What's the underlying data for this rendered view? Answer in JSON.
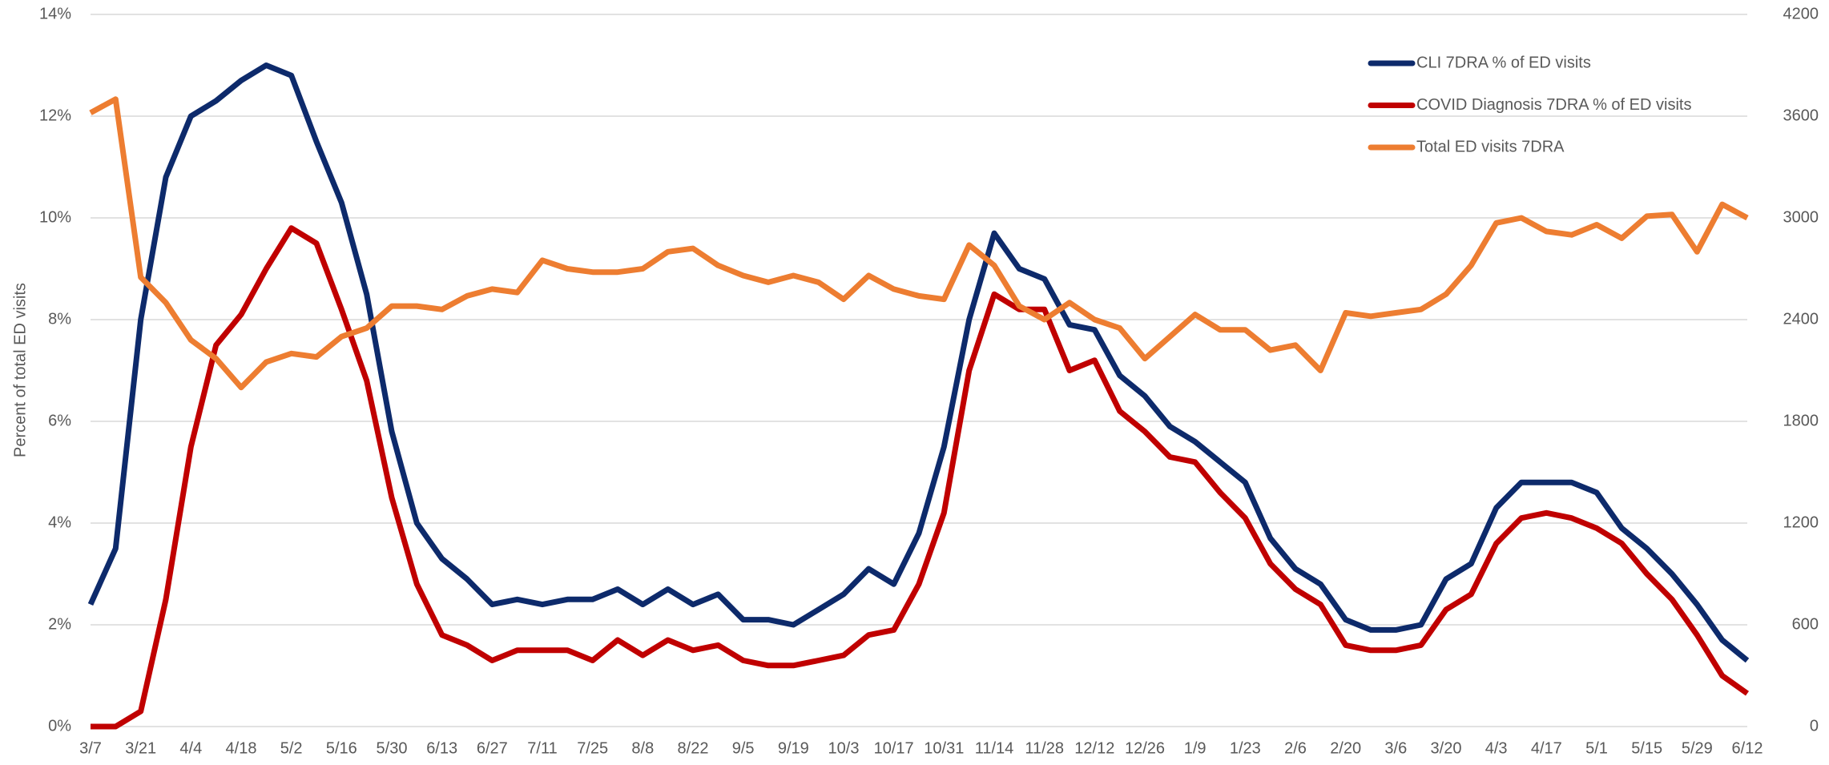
{
  "chart_data": {
    "type": "line",
    "ylabel": "Percent of total ED visits",
    "categories": [
      "3/7",
      null,
      "3/21",
      null,
      "4/4",
      null,
      "4/18",
      null,
      "5/2",
      null,
      "5/16",
      null,
      "5/30",
      null,
      "6/13",
      null,
      "6/27",
      null,
      "7/11",
      null,
      "7/25",
      null,
      "8/8",
      null,
      "8/22",
      null,
      "9/5",
      null,
      "9/19",
      null,
      "10/3",
      null,
      "10/17",
      null,
      "10/31",
      null,
      "11/14",
      null,
      "11/28",
      null,
      "12/12",
      null,
      "12/26",
      null,
      "1/9",
      null,
      "1/23",
      null,
      "2/6",
      null,
      "2/20",
      null,
      "3/6",
      null,
      "3/20",
      null,
      "4/3",
      null,
      "4/17",
      null,
      "5/1",
      null,
      "5/15",
      null,
      "5/29",
      null,
      "6/12"
    ],
    "series": [
      {
        "name": "CLI 7DRA % of ED visits",
        "color": "#0d2a6b",
        "values": [
          2.4,
          3.5,
          8.0,
          10.8,
          12.0,
          12.3,
          12.7,
          13.0,
          12.8,
          11.5,
          10.3,
          8.5,
          5.8,
          4.0,
          3.3,
          2.9,
          2.4,
          2.5,
          2.4,
          2.5,
          2.5,
          2.7,
          2.4,
          2.7,
          2.4,
          2.6,
          2.1,
          2.1,
          2.0,
          2.3,
          2.6,
          3.1,
          2.8,
          3.8,
          5.5,
          8.0,
          9.7,
          9.0,
          8.8,
          7.9,
          7.8,
          6.9,
          6.5,
          5.9,
          5.6,
          5.2,
          4.8,
          3.7,
          3.1,
          2.8,
          2.1,
          1.9,
          1.9,
          2.0,
          2.9,
          3.2,
          4.3,
          4.8,
          4.8,
          4.8,
          4.6,
          3.9,
          3.5,
          3.0,
          2.4,
          1.7,
          1.3
        ]
      },
      {
        "name": "COVID Diagnosis 7DRA % of ED visits",
        "color": "#c00000",
        "values": [
          0.0,
          0.0,
          0.3,
          2.5,
          5.5,
          7.5,
          8.1,
          9.0,
          9.8,
          9.5,
          8.2,
          6.8,
          4.5,
          2.8,
          1.8,
          1.6,
          1.3,
          1.5,
          1.5,
          1.5,
          1.3,
          1.7,
          1.4,
          1.7,
          1.5,
          1.6,
          1.3,
          1.2,
          1.2,
          1.3,
          1.4,
          1.8,
          1.9,
          2.8,
          4.2,
          7.0,
          8.5,
          8.2,
          8.2,
          7.0,
          7.2,
          6.2,
          5.8,
          5.3,
          5.2,
          4.6,
          4.1,
          3.2,
          2.7,
          2.4,
          1.6,
          1.5,
          1.5,
          1.6,
          2.3,
          2.6,
          3.6,
          4.1,
          4.2,
          4.1,
          3.9,
          3.6,
          3.0,
          2.5,
          1.8,
          1.0,
          0.65
        ]
      },
      {
        "name": "Total ED visits 7DRA",
        "color": "#ed7d31",
        "axis": "y2",
        "values": [
          3620,
          3700,
          2650,
          2500,
          2280,
          2170,
          2000,
          2150,
          2200,
          2180,
          2300,
          2350,
          2480,
          2480,
          2460,
          2540,
          2580,
          2560,
          2750,
          2700,
          2680,
          2680,
          2700,
          2800,
          2820,
          2720,
          2660,
          2620,
          2660,
          2620,
          2520,
          2660,
          2580,
          2540,
          2520,
          2840,
          2720,
          2480,
          2400,
          2500,
          2400,
          2350,
          2170,
          2300,
          2430,
          2340,
          2340,
          2220,
          2250,
          2100,
          2440,
          2420,
          2440,
          2460,
          2550,
          2720,
          2970,
          3000,
          2920,
          2900,
          2960,
          2880,
          3010,
          3020,
          2800,
          3080,
          3000
        ]
      }
    ],
    "ylim": [
      0,
      14
    ],
    "yticks": [
      {
        "value": 0,
        "label": "0%"
      },
      {
        "value": 2,
        "label": "2%"
      },
      {
        "value": 4,
        "label": "4%"
      },
      {
        "value": 6,
        "label": "6%"
      },
      {
        "value": 8,
        "label": "8%"
      },
      {
        "value": 10,
        "label": "10%"
      },
      {
        "value": 12,
        "label": "12%"
      },
      {
        "value": 14,
        "label": "14%"
      }
    ],
    "y2lim": [
      0,
      4200
    ],
    "y2ticks": [
      0,
      600,
      1200,
      1800,
      2400,
      3000,
      3600,
      4200
    ],
    "grid": true,
    "legend": "top-right"
  }
}
